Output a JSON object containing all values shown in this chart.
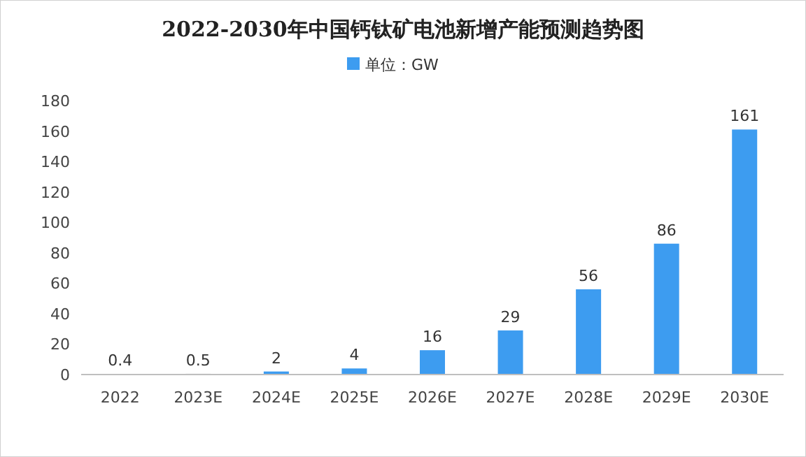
{
  "chart_data": {
    "type": "bar",
    "title": "2022-2030年中国钙钛矿电池新增产能预测趋势图",
    "categories": [
      "2022",
      "2023E",
      "2024E",
      "2025E",
      "2026E",
      "2027E",
      "2028E",
      "2029E",
      "2030E"
    ],
    "series": [
      {
        "name": "单位：GW",
        "color": "#3d9cf0",
        "colors": [
          "#a6a6a6",
          "#a6a6a6",
          "#3d9cf0",
          "#3d9cf0",
          "#3d9cf0",
          "#3d9cf0",
          "#3d9cf0",
          "#3d9cf0",
          "#3d9cf0"
        ],
        "values": [
          0.4,
          0.5,
          2,
          4,
          16,
          29,
          56,
          86,
          161
        ]
      }
    ],
    "ylim": [
      0,
      180
    ],
    "yticks": [
      0,
      20,
      40,
      60,
      80,
      100,
      120,
      140,
      160,
      180
    ],
    "data_labels": true,
    "legend": "top"
  }
}
